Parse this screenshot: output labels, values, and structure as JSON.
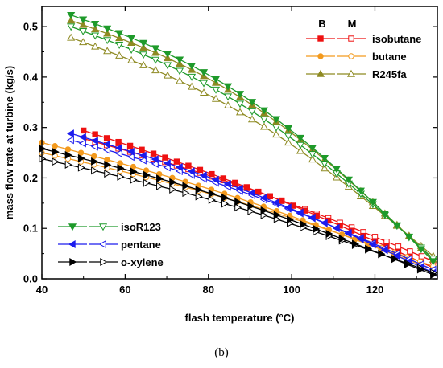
{
  "caption": "(b)",
  "chart_data": {
    "type": "line",
    "xlabel": "flash temperature (°C)",
    "ylabel": "mass flow rate at turbine (kg/s)",
    "xlim": [
      40,
      135
    ],
    "ylim": [
      0,
      0.54
    ],
    "xticks": [
      40,
      60,
      80,
      100,
      120
    ],
    "yticks": [
      0.0,
      0.1,
      0.2,
      0.3,
      0.4,
      0.5
    ],
    "grid": false,
    "legend_headers": {
      "b": "B",
      "m": "M"
    },
    "series": [
      {
        "name": "isobutane",
        "color": "#ee1111",
        "x_start": 50,
        "B": [
          0.294,
          0.09
        ],
        "M": [
          0.278,
          0.105
        ]
      },
      {
        "name": "butane",
        "color": "#f39a1e",
        "x_start": 40,
        "B": [
          0.27,
          0.108
        ],
        "M": [
          0.25,
          0.115
        ]
      },
      {
        "name": "R245fa",
        "color": "#8e8a22",
        "x_start": 47,
        "B": [
          0.512,
          0.245
        ],
        "M": [
          0.478,
          0.21
        ]
      },
      {
        "name": "isoR123",
        "color": "#1e9a2a",
        "x_start": 47,
        "B": [
          0.523,
          0.245
        ],
        "M": [
          0.5,
          0.225
        ]
      },
      {
        "name": "pentane",
        "color": "#1c1cee",
        "x_start": 47,
        "B": [
          0.288,
          0.12
        ],
        "M": [
          0.275,
          0.125
        ]
      },
      {
        "name": "o-xylene",
        "color": "#000000",
        "x_start": 40,
        "B": [
          0.258,
          0.13
        ],
        "M": [
          0.238,
          0.122
        ]
      }
    ],
    "end_values": {
      "isobutane": {
        "B": 0.022,
        "M": 0.035
      },
      "butane": {
        "B": 0.018,
        "M": 0.025
      },
      "R245fa": {
        "B": 0.038,
        "M": 0.045
      },
      "isoR123": {
        "B": 0.035,
        "M": 0.04
      },
      "pentane": {
        "B": 0.012,
        "M": 0.018
      },
      "o-xylene": {
        "B": 0.008,
        "M": 0.012
      }
    },
    "x_end": 134
  }
}
